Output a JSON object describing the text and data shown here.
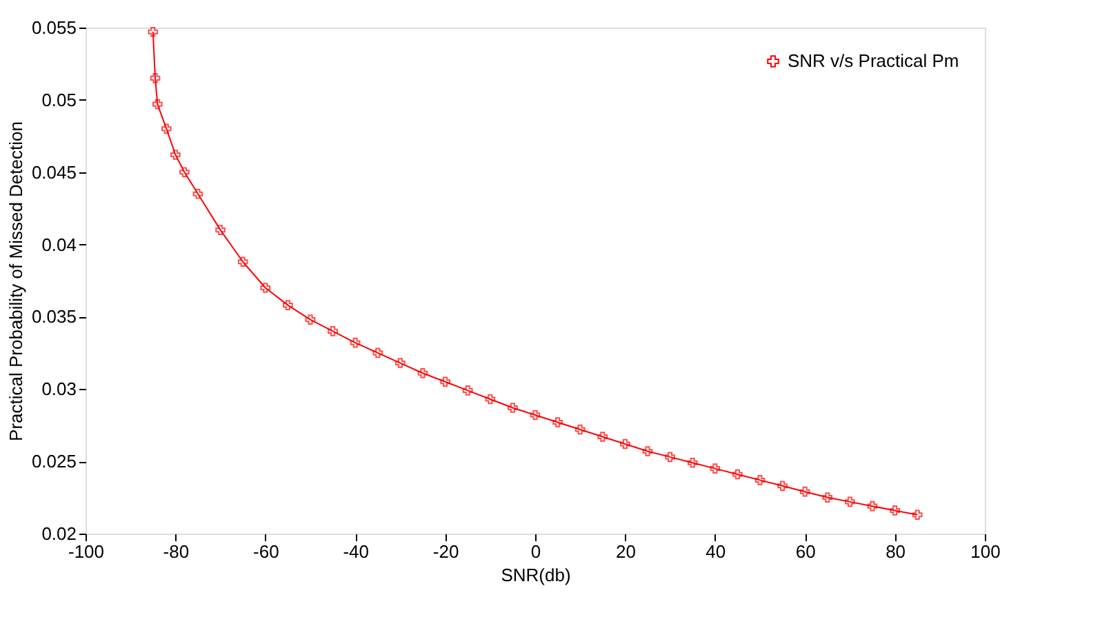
{
  "chart_data": {
    "type": "line",
    "xlabel": "SNR(db)",
    "ylabel": "Practical Probability of Missed Detection",
    "x": [
      -85,
      -84.5,
      -84,
      -82,
      -80,
      -78,
      -75,
      -70,
      -65,
      -60,
      -55,
      -50,
      -45,
      -40,
      -35,
      -30,
      -25,
      -20,
      -15,
      -10,
      -5,
      0,
      5,
      10,
      15,
      20,
      25,
      30,
      35,
      40,
      45,
      50,
      55,
      60,
      65,
      70,
      75,
      80,
      85
    ],
    "series": [
      {
        "name": "SNR v/s Practical Pm",
        "color": "#ff0000",
        "values": [
          0.0547,
          0.0515,
          0.0497,
          0.048,
          0.0462,
          0.045,
          0.0435,
          0.041,
          0.0388,
          0.037,
          0.0358,
          0.0348,
          0.034,
          0.0332,
          0.0325,
          0.0318,
          0.0311,
          0.0305,
          0.0299,
          0.0293,
          0.0287,
          0.0282,
          0.0277,
          0.0272,
          0.0267,
          0.0262,
          0.0257,
          0.0253,
          0.0249,
          0.0245,
          0.0241,
          0.0237,
          0.0233,
          0.0229,
          0.0225,
          0.0222,
          0.0219,
          0.0216,
          0.0213
        ]
      }
    ],
    "xlim": [
      -100,
      100
    ],
    "xticks": [
      -100,
      -80,
      -60,
      -40,
      -20,
      0,
      20,
      40,
      60,
      80,
      100
    ],
    "ylim": [
      0.02,
      0.055
    ],
    "yticks": [
      0.02,
      0.025,
      0.03,
      0.035,
      0.04,
      0.045,
      0.05,
      0.055
    ],
    "grid": false,
    "legend": "top right",
    "marker": "cross",
    "line_style": "solid"
  }
}
